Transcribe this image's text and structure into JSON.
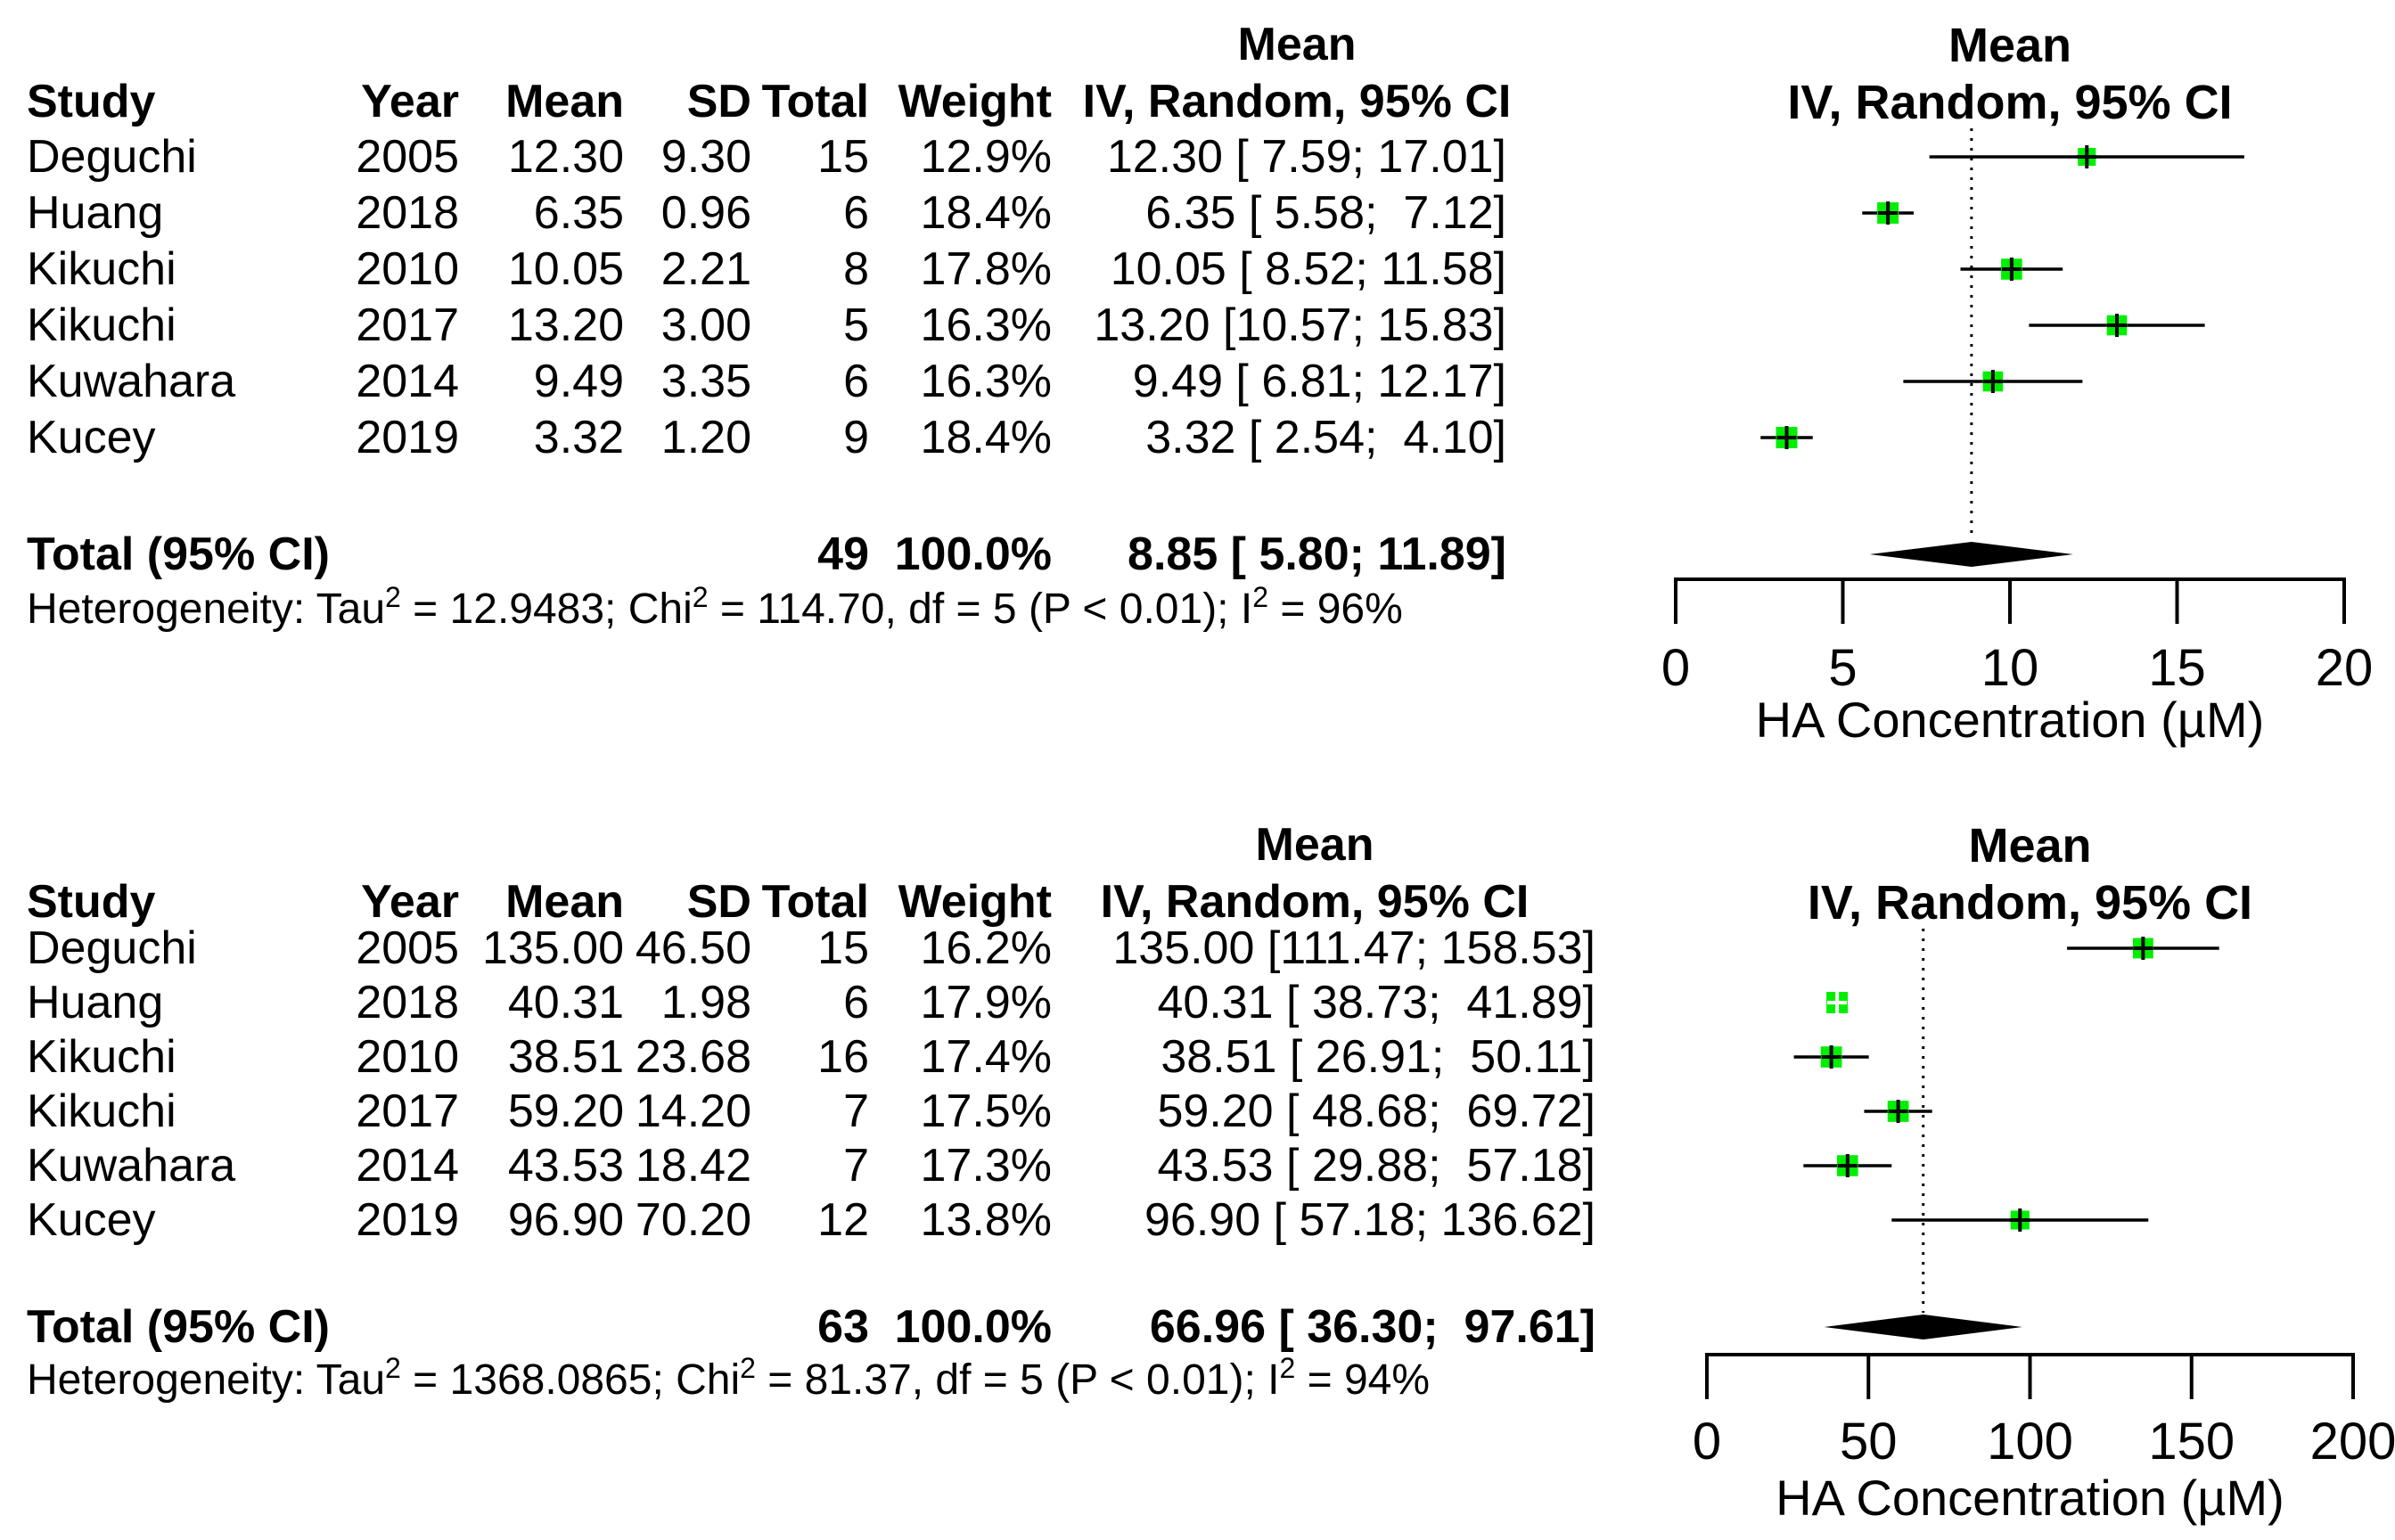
{
  "colors": {
    "square": "#00ee00",
    "ink": "#000000",
    "background": "#ffffff",
    "inside_marker": "#ffffff"
  },
  "chart_data": [
    {
      "type": "forest",
      "position": "top",
      "column_headers": {
        "study": "Study",
        "year": "Year",
        "mean": "Mean",
        "sd": "SD",
        "total": "Total",
        "weight": "Weight",
        "effect_line1": "Mean",
        "effect_line2": "IV, Random, 95% CI"
      },
      "plot_header": [
        "Mean",
        "IV, Random, 95% CI"
      ],
      "studies": [
        {
          "study": "Deguchi",
          "year": "2005",
          "mean_label": "12.30",
          "sd_label": "9.30",
          "total_label": "15",
          "weight_label": "12.9%",
          "ci_label": "12.30 [ 7.59; 17.01]",
          "mean": 12.3,
          "lo": 7.59,
          "hi": 17.01,
          "weight_pct": 12.9
        },
        {
          "study": "Huang",
          "year": "2018",
          "mean_label": "6.35",
          "sd_label": "0.96",
          "total_label": "6",
          "weight_label": "18.4%",
          "ci_label": " 6.35 [ 5.58;  7.12]",
          "mean": 6.35,
          "lo": 5.58,
          "hi": 7.12,
          "weight_pct": 18.4
        },
        {
          "study": "Kikuchi",
          "year": "2010",
          "mean_label": "10.05",
          "sd_label": "2.21",
          "total_label": "8",
          "weight_label": "17.8%",
          "ci_label": "10.05 [ 8.52; 11.58]",
          "mean": 10.05,
          "lo": 8.52,
          "hi": 11.58,
          "weight_pct": 17.8
        },
        {
          "study": "Kikuchi",
          "year": "2017",
          "mean_label": "13.20",
          "sd_label": "3.00",
          "total_label": "5",
          "weight_label": "16.3%",
          "ci_label": "13.20 [10.57; 15.83]",
          "mean": 13.2,
          "lo": 10.57,
          "hi": 15.83,
          "weight_pct": 16.3
        },
        {
          "study": "Kuwahara",
          "year": "2014",
          "mean_label": "9.49",
          "sd_label": "3.35",
          "total_label": "6",
          "weight_label": "16.3%",
          "ci_label": " 9.49 [ 6.81; 12.17]",
          "mean": 9.49,
          "lo": 6.81,
          "hi": 12.17,
          "weight_pct": 16.3
        },
        {
          "study": "Kucey",
          "year": "2019",
          "mean_label": "3.32",
          "sd_label": "1.20",
          "total_label": "9",
          "weight_label": "18.4%",
          "ci_label": " 3.32 [ 2.54;  4.10]",
          "mean": 3.32,
          "lo": 2.54,
          "hi": 4.1,
          "weight_pct": 18.4
        }
      ],
      "total": {
        "label": "Total (95% CI)",
        "n": "49",
        "weight_label": "100.0%",
        "ci_label": " 8.85 [ 5.80; 11.89]",
        "mean": 8.85,
        "lo": 5.8,
        "hi": 11.89
      },
      "heterogeneity_parts": [
        "Heterogeneity: Tau",
        "2",
        " = 12.9483; Chi",
        "2",
        " = 114.70, df = 5 (P < 0.01); I",
        "2",
        " = 96%"
      ],
      "axis": {
        "xlim": [
          0,
          20
        ],
        "ticks": [
          0,
          5,
          10,
          15,
          20
        ],
        "tick_labels": [
          "0",
          "5",
          "10",
          "15",
          "20"
        ],
        "xlabel": "HA Concentration (µM)",
        "grid": false
      }
    },
    {
      "type": "forest",
      "position": "bottom",
      "column_headers": {
        "study": "Study",
        "year": "Year",
        "mean": "Mean",
        "sd": "SD",
        "total": "Total",
        "weight": "Weight",
        "effect_line1": "Mean",
        "effect_line2": "IV, Random, 95% CI"
      },
      "plot_header": [
        "Mean",
        "IV, Random, 95% CI"
      ],
      "studies": [
        {
          "study": "Deguchi",
          "year": "2005",
          "mean_label": "135.00",
          "sd_label": "46.50",
          "total_label": "15",
          "weight_label": "16.2%",
          "ci_label": "135.00 [111.47; 158.53]",
          "mean": 135.0,
          "lo": 111.47,
          "hi": 158.53,
          "weight_pct": 16.2
        },
        {
          "study": "Huang",
          "year": "2018",
          "mean_label": "40.31",
          "sd_label": "1.98",
          "total_label": "6",
          "weight_label": "17.9%",
          "ci_label": " 40.31 [ 38.73;  41.89]",
          "mean": 40.31,
          "lo": 38.73,
          "hi": 41.89,
          "weight_pct": 17.9
        },
        {
          "study": "Kikuchi",
          "year": "2010",
          "mean_label": "38.51",
          "sd_label": "23.68",
          "total_label": "16",
          "weight_label": "17.4%",
          "ci_label": " 38.51 [ 26.91;  50.11]",
          "mean": 38.51,
          "lo": 26.91,
          "hi": 50.11,
          "weight_pct": 17.4
        },
        {
          "study": "Kikuchi",
          "year": "2017",
          "mean_label": "59.20",
          "sd_label": "14.20",
          "total_label": "7",
          "weight_label": "17.5%",
          "ci_label": " 59.20 [ 48.68;  69.72]",
          "mean": 59.2,
          "lo": 48.68,
          "hi": 69.72,
          "weight_pct": 17.5
        },
        {
          "study": "Kuwahara",
          "year": "2014",
          "mean_label": "43.53",
          "sd_label": "18.42",
          "total_label": "7",
          "weight_label": "17.3%",
          "ci_label": " 43.53 [ 29.88;  57.18]",
          "mean": 43.53,
          "lo": 29.88,
          "hi": 57.18,
          "weight_pct": 17.3
        },
        {
          "study": "Kucey",
          "year": "2019",
          "mean_label": "96.90",
          "sd_label": "70.20",
          "total_label": "12",
          "weight_label": "13.8%",
          "ci_label": " 96.90 [ 57.18; 136.62]",
          "mean": 96.9,
          "lo": 57.18,
          "hi": 136.62,
          "weight_pct": 13.8
        }
      ],
      "total": {
        "label": "Total (95% CI)",
        "n": "63",
        "weight_label": "100.0%",
        "ci_label": " 66.96 [ 36.30;  97.61]",
        "mean": 66.96,
        "lo": 36.3,
        "hi": 97.61
      },
      "heterogeneity_parts": [
        "Heterogeneity: Tau",
        "2",
        " = 1368.0865; Chi",
        "2",
        " = 81.37, df = 5 (P < 0.01); I",
        "2",
        " = 94%"
      ],
      "axis": {
        "xlim": [
          0,
          200
        ],
        "ticks": [
          0,
          50,
          100,
          150,
          200
        ],
        "tick_labels": [
          "0",
          "50",
          "100",
          "150",
          "200"
        ],
        "xlabel": "HA Concentration (µM)",
        "grid": false
      }
    }
  ]
}
